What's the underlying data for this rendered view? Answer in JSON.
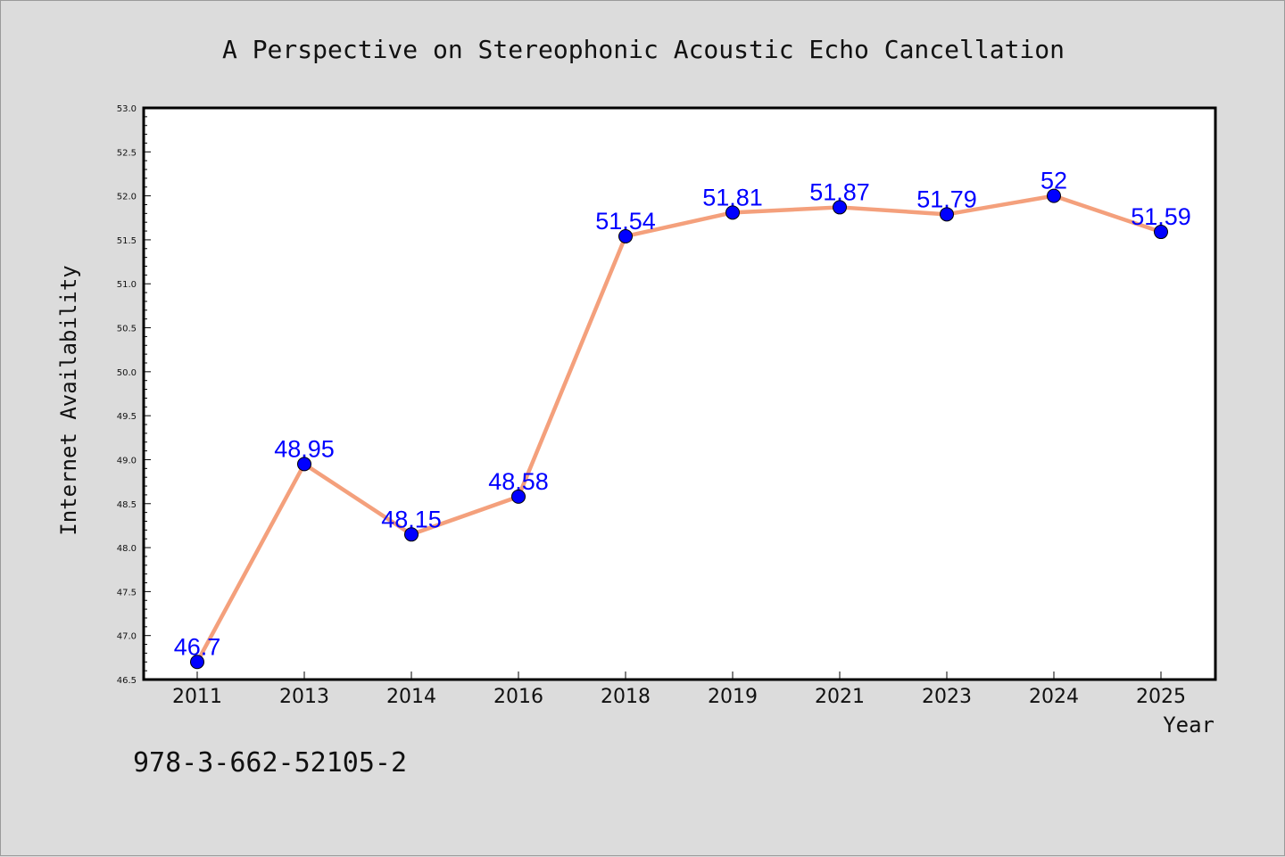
{
  "chart_data": {
    "type": "line",
    "title": "A Perspective on Stereophonic Acoustic Echo Cancellation",
    "xlabel": "Year",
    "ylabel": "Internet Availability",
    "categories": [
      "2011",
      "2013",
      "2014",
      "2016",
      "2018",
      "2019",
      "2021",
      "2023",
      "2024",
      "2025"
    ],
    "series": [
      {
        "values": [
          46.7,
          48.95,
          48.15,
          48.58,
          51.54,
          51.81,
          51.87,
          51.79,
          52,
          51.59
        ],
        "data_labels": [
          "46.7",
          "48.95",
          "48.15",
          "48.58",
          "51.54",
          "51.81",
          "51.87",
          "51.79",
          "52",
          "51.59"
        ]
      }
    ],
    "ylim": [
      46.5,
      53.0
    ],
    "yticks": [
      "46.5",
      "47.0",
      "47.5",
      "48.0",
      "48.5",
      "49.0",
      "49.5",
      "50.0",
      "50.5",
      "51.0",
      "51.5",
      "52.0",
      "52.5",
      "53.0"
    ],
    "grid": false,
    "legend": "none",
    "colors": {
      "line": "#f4a07c",
      "marker": "#0000ff",
      "label": "#0000ff",
      "plot_background": "#ffffff",
      "figure_background": "#dcdcdc"
    }
  },
  "footnote": "978-3-662-52105-2"
}
